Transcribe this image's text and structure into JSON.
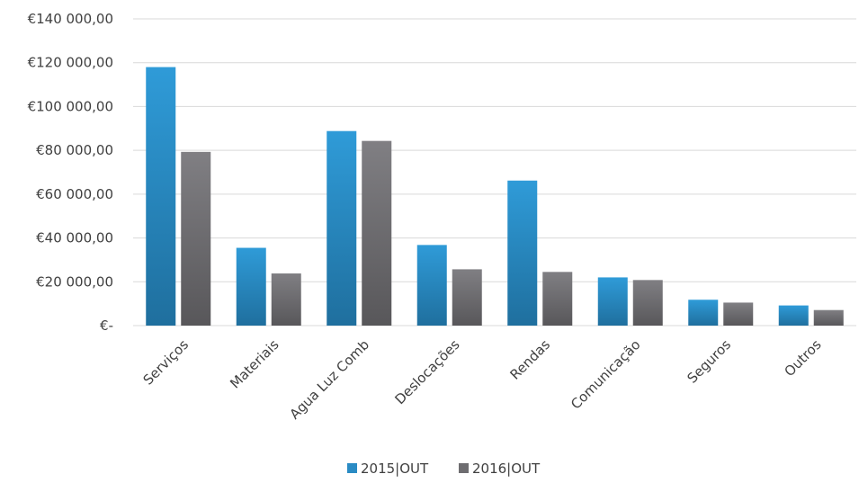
{
  "chart_data": {
    "type": "bar",
    "categories": [
      "Serviços",
      "Materiais",
      "Agua Luz Comb",
      "Deslocações",
      "Rendas",
      "Comunicação",
      "Seguros",
      "Outros"
    ],
    "series": [
      {
        "name": "2015|OUT",
        "values": [
          118000,
          35500,
          88800,
          36800,
          66200,
          22000,
          11800,
          9200
        ],
        "color": "#2a8bc4"
      },
      {
        "name": "2016|OUT",
        "values": [
          79300,
          23800,
          84300,
          25700,
          24500,
          20800,
          10500,
          7100
        ],
        "color": "#6e6d70"
      }
    ],
    "yticks": [
      "€-",
      "€20 000,00",
      "€40 000,00",
      "€60 000,00",
      "€80 000,00",
      "€100 000,00",
      "€120 000,00",
      "€140 000,00"
    ],
    "ylim": [
      0,
      140000
    ],
    "grid": true,
    "legend_position": "bottom"
  }
}
